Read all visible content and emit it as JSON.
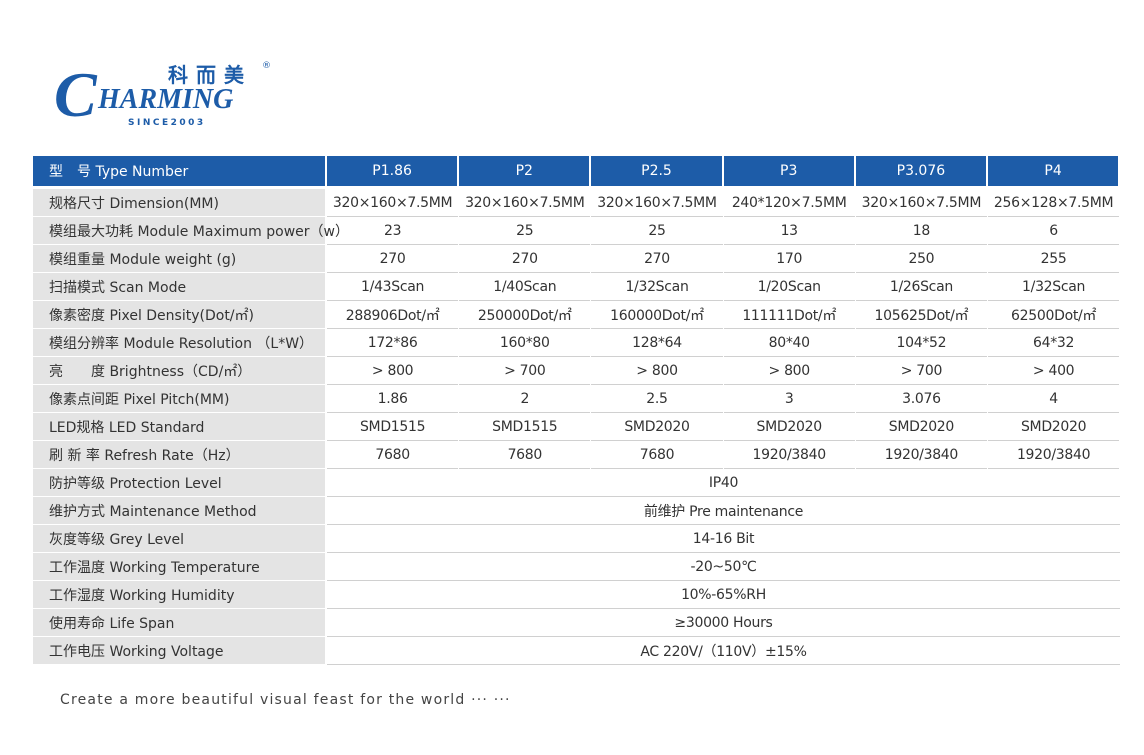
{
  "logo": {
    "chinese": "科而美",
    "initial": "C",
    "rest": "HARMING",
    "registered": "®",
    "since": "SINCE2003"
  },
  "table": {
    "header": {
      "label": "型　号 Type Number",
      "columns": [
        "P1.86",
        "P2",
        "P2.5",
        "P3",
        "P3.076",
        "P4"
      ]
    },
    "rows": [
      {
        "label": "规格尺寸 Dimension(MM)",
        "values": [
          "320×160×7.5MM",
          "320×160×7.5MM",
          "320×160×7.5MM",
          "240*120×7.5MM",
          "320×160×7.5MM",
          "256×128×7.5MM"
        ]
      },
      {
        "label": "模组最大功耗 Module Maximum power（w）",
        "values": [
          "23",
          "25",
          "25",
          "13",
          "18",
          "6"
        ]
      },
      {
        "label": "模组重量 Module weight (g)",
        "values": [
          "270",
          "270",
          "270",
          "170",
          "250",
          "255"
        ]
      },
      {
        "label": "扫描模式 Scan Mode",
        "values": [
          "1/43Scan",
          "1/40Scan",
          "1/32Scan",
          "1/20Scan",
          "1/26Scan",
          "1/32Scan"
        ]
      },
      {
        "label": "像素密度 Pixel Density(Dot/㎡)",
        "values": [
          "288906Dot/㎡",
          "250000Dot/㎡",
          "160000Dot/㎡",
          "111111Dot/㎡",
          "105625Dot/㎡",
          "62500Dot/㎡"
        ]
      },
      {
        "label": "模组分辨率 Module Resolution （L*W）",
        "values": [
          "172*86",
          "160*80",
          "128*64",
          "80*40",
          "104*52",
          "64*32"
        ]
      },
      {
        "label": "亮　　度 Brightness（CD/㎡）",
        "values": [
          "> 800",
          "> 700",
          "> 800",
          "> 800",
          "> 700",
          "> 400"
        ]
      },
      {
        "label": "像素点间距 Pixel Pitch(MM)",
        "values": [
          "1.86",
          "2",
          "2.5",
          "3",
          "3.076",
          "4"
        ]
      },
      {
        "label": "LED规格 LED Standard",
        "values": [
          "SMD1515",
          "SMD1515",
          "SMD2020",
          "SMD2020",
          "SMD2020",
          "SMD2020"
        ]
      },
      {
        "label": "刷 新 率 Refresh Rate（Hz）",
        "values": [
          "7680",
          "7680",
          "7680",
          "1920/3840",
          "1920/3840",
          "1920/3840"
        ]
      },
      {
        "label": "防护等级 Protection Level",
        "value": "IP40"
      },
      {
        "label": "维护方式 Maintenance Method",
        "value": "前维护 Pre maintenance"
      },
      {
        "label": "灰度等级 Grey Level",
        "value": "14-16 Bit"
      },
      {
        "label": "工作温度 Working Temperature",
        "value": "-20~50℃"
      },
      {
        "label": "工作湿度 Working Humidity",
        "value": "10%-65%RH"
      },
      {
        "label": "使用寿命 Life Span",
        "value": "≥30000 Hours"
      },
      {
        "label": "工作电压 Working Voltage",
        "value": "AC 220V/（110V）±15%"
      }
    ]
  },
  "footer": "Create a more beautiful visual feast for the world ··· ···"
}
